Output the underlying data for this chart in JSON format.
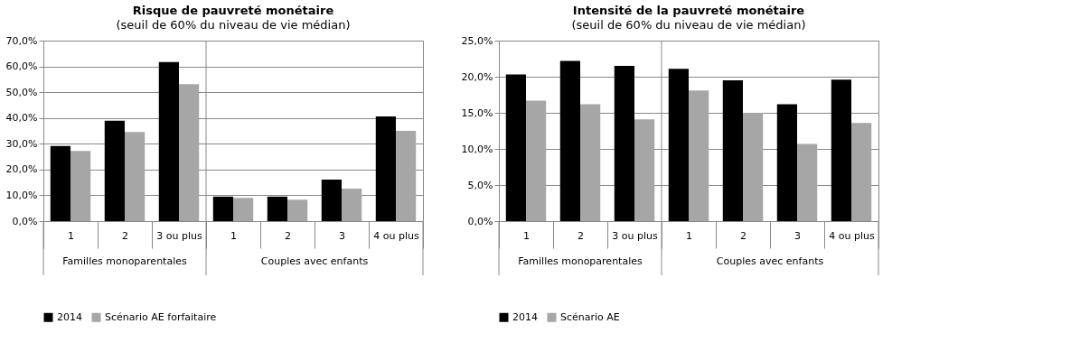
{
  "chart_data": [
    {
      "type": "bar",
      "title": "Risque de pauvreté monétaire",
      "subtitle": "(seuil de 60% du niveau de vie médian)",
      "categories": [
        "1",
        "2",
        "3 ou plus",
        "1",
        "2",
        "3",
        "4 ou plus"
      ],
      "annotations": [
        "Familles monoparentales",
        "Couples avec enfants"
      ],
      "series": [
        {
          "name": "2014",
          "color": "#000000",
          "values": [
            29.1,
            38.9,
            61.7,
            9.5,
            9.5,
            16.1,
            40.6
          ]
        },
        {
          "name": "Scénario AE forfaitaire",
          "color": "#a6a6a6",
          "values": [
            27.2,
            34.6,
            53.1,
            9.0,
            8.3,
            12.6,
            35.0
          ]
        }
      ],
      "ylim": [
        0,
        70
      ],
      "yticks": [
        {
          "value": 0,
          "label": "0,0%"
        },
        {
          "value": 10,
          "label": "10,0%"
        },
        {
          "value": 20,
          "label": "20,0%"
        },
        {
          "value": 30,
          "label": "30,0%"
        },
        {
          "value": 40,
          "label": "40,0%"
        },
        {
          "value": 50,
          "label": "50,0%"
        },
        {
          "value": 60,
          "label": "60,0%"
        },
        {
          "value": 70,
          "label": "70,0%"
        }
      ],
      "grid": "y",
      "legend": "bottom"
    },
    {
      "type": "bar",
      "title": "Intensité de la pauvreté monétaire",
      "subtitle": "(seuil de 60% du niveau de vie médian)",
      "categories": [
        "1",
        "2",
        "3 ou plus",
        "1",
        "2",
        "3",
        "4 ou plus"
      ],
      "annotations": [
        "Familles monoparentales",
        "Couples avec enfants"
      ],
      "series": [
        {
          "name": "2014",
          "color": "#000000",
          "values": [
            20.3,
            22.2,
            21.5,
            21.1,
            19.5,
            16.2,
            19.6
          ]
        },
        {
          "name": "Scénario AE",
          "color": "#a6a6a6",
          "values": [
            16.7,
            16.2,
            14.1,
            18.1,
            15.0,
            10.7,
            13.6
          ]
        }
      ],
      "ylim": [
        0,
        25
      ],
      "yticks": [
        {
          "value": 0,
          "label": "0,0%"
        },
        {
          "value": 5,
          "label": "5,0%"
        },
        {
          "value": 10,
          "label": "10,0%"
        },
        {
          "value": 15,
          "label": "15,0%"
        },
        {
          "value": 20,
          "label": "20,0%"
        },
        {
          "value": 25,
          "label": "25,0%"
        }
      ],
      "grid": "y",
      "legend": "bottom"
    }
  ]
}
